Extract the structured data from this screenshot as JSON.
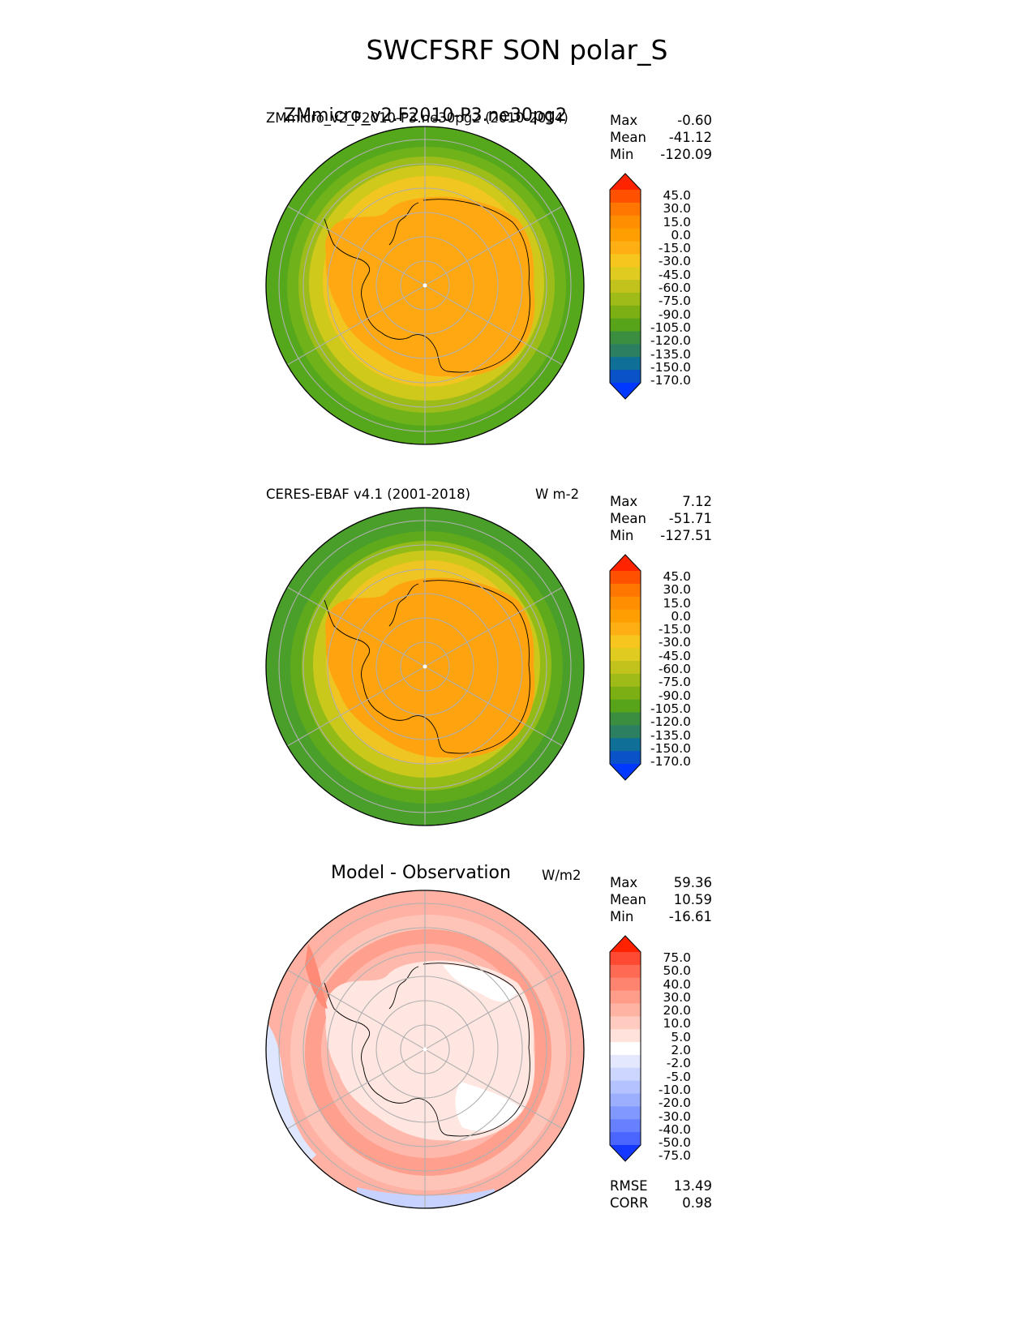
{
  "figure": {
    "title": "SWCFSRF SON polar_S"
  },
  "panels": [
    {
      "id": "test",
      "title_big": "ZMmicro_v2.F2010-P3.ne30pg2",
      "title_small": "ZMmicro_v2_F2010-P3.ne30pg2 (2010-2014)",
      "units": "",
      "stats": {
        "max_label": "Max",
        "max": "-0.60",
        "mean_label": "Mean",
        "mean": "-41.12",
        "min_label": "Min",
        "min": "-120.09"
      },
      "colorbar_ticks": [
        "45.0",
        "30.0",
        "15.0",
        "0.0",
        "-15.0",
        "-30.0",
        "-45.0",
        "-60.0",
        "-75.0",
        "-90.0",
        "-105.0",
        "-120.0",
        "-135.0",
        "-150.0",
        "-170.0"
      ],
      "colorbar_colors": [
        "#ff2400",
        "#ff5100",
        "#ff7600",
        "#ff8f00",
        "#ff9e00",
        "#ffae14",
        "#f6c61e",
        "#e0cc20",
        "#c2c21c",
        "#9ebb18",
        "#7caf14",
        "#57a31a",
        "#3b8e3f",
        "#2c8061",
        "#0f6f96",
        "#0a52c8",
        "#0038ff"
      ],
      "ocean_color": "#55a81c",
      "ring_colors": [
        "#6fb21a",
        "#9cbd19",
        "#cfc91c",
        "#f1c620"
      ],
      "ice_color": "#ffa812"
    },
    {
      "id": "ref",
      "title_small": "CERES-EBAF v4.1 (2001-2018)",
      "units": "W m-2",
      "stats": {
        "max_label": "Max",
        "max": "7.12",
        "mean_label": "Mean",
        "mean": "-51.71",
        "min_label": "Min",
        "min": "-127.51"
      },
      "colorbar_ticks": [
        "45.0",
        "30.0",
        "15.0",
        "0.0",
        "-15.0",
        "-30.0",
        "-45.0",
        "-60.0",
        "-75.0",
        "-90.0",
        "-105.0",
        "-120.0",
        "-135.0",
        "-150.0",
        "-170.0"
      ],
      "colorbar_colors": [
        "#ff2400",
        "#ff5100",
        "#ff7600",
        "#ff8f00",
        "#ff9e00",
        "#ffae14",
        "#f6c61e",
        "#e0cc20",
        "#c2c21c",
        "#9ebb18",
        "#7caf14",
        "#57a31a",
        "#3b8e3f",
        "#2c8061",
        "#0f6f96",
        "#0a52c8",
        "#0038ff"
      ],
      "ocean_color": "#4a9e2a",
      "ring_colors": [
        "#5faa1c",
        "#93bb18",
        "#cbc81c",
        "#eec522"
      ],
      "ice_color": "#ffa30f"
    },
    {
      "id": "diff",
      "title_big": "Model - Observation",
      "units": "W/m2",
      "stats": {
        "max_label": "Max",
        "max": "59.36",
        "mean_label": "Mean",
        "mean": "10.59",
        "min_label": "Min",
        "min": "-16.61"
      },
      "colorbar_ticks": [
        "75.0",
        "50.0",
        "40.0",
        "30.0",
        "20.0",
        "10.0",
        "5.0",
        "2.0",
        "-2.0",
        "-5.0",
        "-10.0",
        "-20.0",
        "-30.0",
        "-40.0",
        "-50.0",
        "-75.0"
      ],
      "colorbar_colors": [
        "#ff2200",
        "#ff4a33",
        "#ff6a55",
        "#ff8470",
        "#ff9c8a",
        "#ffb3a3",
        "#ffcbc0",
        "#ffe2dc",
        "#ffffff",
        "#e3e8ff",
        "#ccd6ff",
        "#b4c3ff",
        "#9cafff",
        "#8098ff",
        "#6680ff",
        "#4a66ff",
        "#1438ff"
      ],
      "ocean_color": "#ffb2a4",
      "ring_colors": [
        "#ffc4b8",
        "#ff9f8e",
        "#ffb9ac",
        "#ffd4cb"
      ],
      "ice_color": "#ffe6e0",
      "metrics": {
        "rmse_label": "RMSE",
        "rmse": "13.49",
        "corr_label": "CORR",
        "corr": "0.98"
      }
    }
  ]
}
